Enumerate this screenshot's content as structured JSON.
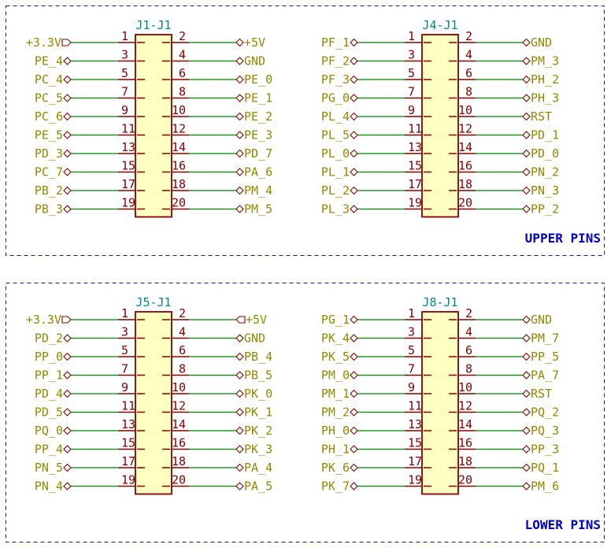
{
  "sections": [
    {
      "title": "UPPER PINS",
      "connectors": [
        {
          "ref": "J1-J1",
          "pins": [
            {
              "num": "1",
              "label": "+3.3V",
              "flag": "input"
            },
            {
              "num": "2",
              "label": "+5V",
              "flag": "diamond"
            },
            {
              "num": "3",
              "label": "PE_4",
              "flag": "diamond"
            },
            {
              "num": "4",
              "label": "GND",
              "flag": "diamond"
            },
            {
              "num": "5",
              "label": "PC_4",
              "flag": "diamond"
            },
            {
              "num": "6",
              "label": "PE_0",
              "flag": "diamond"
            },
            {
              "num": "7",
              "label": "PC_5",
              "flag": "diamond"
            },
            {
              "num": "8",
              "label": "PE_1",
              "flag": "diamond"
            },
            {
              "num": "9",
              "label": "PC_6",
              "flag": "diamond"
            },
            {
              "num": "10",
              "label": "PE_2",
              "flag": "diamond"
            },
            {
              "num": "11",
              "label": "PE_5",
              "flag": "diamond"
            },
            {
              "num": "12",
              "label": "PE_3",
              "flag": "diamond"
            },
            {
              "num": "13",
              "label": "PD_3",
              "flag": "diamond"
            },
            {
              "num": "14",
              "label": "PD_7",
              "flag": "diamond"
            },
            {
              "num": "15",
              "label": "PC_7",
              "flag": "diamond"
            },
            {
              "num": "16",
              "label": "PA_6",
              "flag": "diamond"
            },
            {
              "num": "17",
              "label": "PB_2",
              "flag": "diamond"
            },
            {
              "num": "18",
              "label": "PM_4",
              "flag": "diamond"
            },
            {
              "num": "19",
              "label": "PB_3",
              "flag": "diamond"
            },
            {
              "num": "20",
              "label": "PM_5",
              "flag": "diamond"
            }
          ]
        },
        {
          "ref": "J4-J1",
          "pins": [
            {
              "num": "1",
              "label": "PF_1",
              "flag": "diamond"
            },
            {
              "num": "2",
              "label": "GND",
              "flag": "diamond"
            },
            {
              "num": "3",
              "label": "PF_2",
              "flag": "diamond"
            },
            {
              "num": "4",
              "label": "PM_3",
              "flag": "diamond"
            },
            {
              "num": "5",
              "label": "PF_3",
              "flag": "diamond"
            },
            {
              "num": "6",
              "label": "PH_2",
              "flag": "diamond"
            },
            {
              "num": "7",
              "label": "PG_0",
              "flag": "diamond"
            },
            {
              "num": "8",
              "label": "PH_3",
              "flag": "diamond"
            },
            {
              "num": "9",
              "label": "PL_4",
              "flag": "diamond"
            },
            {
              "num": "10",
              "label": "RST",
              "flag": "diamond"
            },
            {
              "num": "11",
              "label": "PL_5",
              "flag": "diamond"
            },
            {
              "num": "12",
              "label": "PD_1",
              "flag": "diamond"
            },
            {
              "num": "13",
              "label": "PL_0",
              "flag": "diamond"
            },
            {
              "num": "14",
              "label": "PD_0",
              "flag": "diamond"
            },
            {
              "num": "15",
              "label": "PL_1",
              "flag": "diamond"
            },
            {
              "num": "16",
              "label": "PN_2",
              "flag": "diamond"
            },
            {
              "num": "17",
              "label": "PL_2",
              "flag": "diamond"
            },
            {
              "num": "18",
              "label": "PN_3",
              "flag": "diamond"
            },
            {
              "num": "19",
              "label": "PL_3",
              "flag": "diamond"
            },
            {
              "num": "20",
              "label": "PP_2",
              "flag": "diamond"
            }
          ]
        }
      ]
    },
    {
      "title": "LOWER PINS",
      "connectors": [
        {
          "ref": "J5-J1",
          "pins": [
            {
              "num": "1",
              "label": "+3.3V",
              "flag": "input"
            },
            {
              "num": "2",
              "label": "+5V",
              "flag": "input"
            },
            {
              "num": "3",
              "label": "PD_2",
              "flag": "diamond"
            },
            {
              "num": "4",
              "label": "GND",
              "flag": "diamond"
            },
            {
              "num": "5",
              "label": "PP_0",
              "flag": "diamond"
            },
            {
              "num": "6",
              "label": "PB_4",
              "flag": "diamond"
            },
            {
              "num": "7",
              "label": "PP_1",
              "flag": "diamond"
            },
            {
              "num": "8",
              "label": "PB_5",
              "flag": "diamond"
            },
            {
              "num": "9",
              "label": "PD_4",
              "flag": "diamond"
            },
            {
              "num": "10",
              "label": "PK_0",
              "flag": "diamond"
            },
            {
              "num": "11",
              "label": "PD_5",
              "flag": "diamond"
            },
            {
              "num": "12",
              "label": "PK_1",
              "flag": "diamond"
            },
            {
              "num": "13",
              "label": "PQ_0",
              "flag": "diamond"
            },
            {
              "num": "14",
              "label": "PK_2",
              "flag": "diamond"
            },
            {
              "num": "15",
              "label": "PP_4",
              "flag": "diamond"
            },
            {
              "num": "16",
              "label": "PK_3",
              "flag": "diamond"
            },
            {
              "num": "17",
              "label": "PN_5",
              "flag": "diamond"
            },
            {
              "num": "18",
              "label": "PA_4",
              "flag": "diamond"
            },
            {
              "num": "19",
              "label": "PN_4",
              "flag": "diamond"
            },
            {
              "num": "20",
              "label": "PA_5",
              "flag": "diamond"
            }
          ]
        },
        {
          "ref": "J8-J1",
          "pins": [
            {
              "num": "1",
              "label": "PG_1",
              "flag": "diamond"
            },
            {
              "num": "2",
              "label": "GND",
              "flag": "diamond"
            },
            {
              "num": "3",
              "label": "PK_4",
              "flag": "diamond"
            },
            {
              "num": "4",
              "label": "PM_7",
              "flag": "diamond"
            },
            {
              "num": "5",
              "label": "PK_5",
              "flag": "diamond"
            },
            {
              "num": "6",
              "label": "PP_5",
              "flag": "diamond"
            },
            {
              "num": "7",
              "label": "PM_0",
              "flag": "diamond"
            },
            {
              "num": "8",
              "label": "PA_7",
              "flag": "diamond"
            },
            {
              "num": "9",
              "label": "PM_1",
              "flag": "diamond"
            },
            {
              "num": "10",
              "label": "RST",
              "flag": "diamond"
            },
            {
              "num": "11",
              "label": "PM_2",
              "flag": "diamond"
            },
            {
              "num": "12",
              "label": "PQ_2",
              "flag": "diamond"
            },
            {
              "num": "13",
              "label": "PH_0",
              "flag": "diamond"
            },
            {
              "num": "14",
              "label": "PQ_3",
              "flag": "diamond"
            },
            {
              "num": "15",
              "label": "PH_1",
              "flag": "diamond"
            },
            {
              "num": "16",
              "label": "PP_3",
              "flag": "diamond"
            },
            {
              "num": "17",
              "label": "PK_6",
              "flag": "diamond"
            },
            {
              "num": "18",
              "label": "PQ_1",
              "flag": "diamond"
            },
            {
              "num": "19",
              "label": "PK_7",
              "flag": "diamond"
            },
            {
              "num": "20",
              "label": "PM_6",
              "flag": "diamond"
            }
          ]
        }
      ]
    }
  ]
}
